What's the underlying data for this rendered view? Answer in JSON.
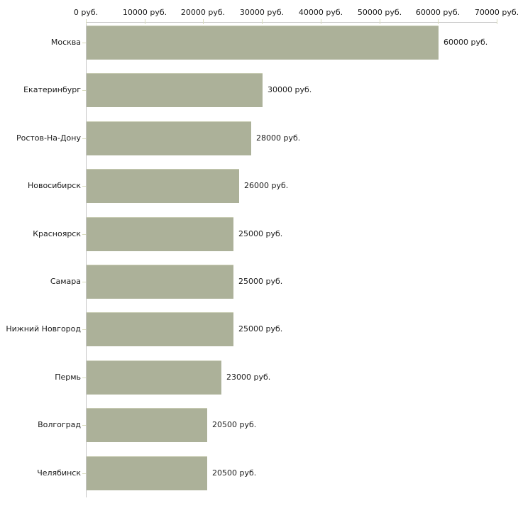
{
  "page": {
    "background_color": "#ffffff",
    "text_color": "#1a1a1a"
  },
  "chart_data": {
    "type": "bar",
    "orientation": "horizontal",
    "title": "",
    "xlabel": "",
    "ylabel": "",
    "unit": "руб.",
    "xlim": [
      0,
      70000
    ],
    "grid": "off",
    "legend": "none",
    "x_tick_values": [
      0,
      10000,
      20000,
      30000,
      40000,
      50000,
      60000,
      70000
    ],
    "x_tick_labels": [
      "0 руб.",
      "10000 руб.",
      "20000 руб.",
      "30000 руб.",
      "40000 руб.",
      "50000 руб.",
      "60000 руб.",
      "70000 руб."
    ],
    "categories": [
      "Москва",
      "Екатеринбург",
      "Ростов-На-Дону",
      "Новосибирск",
      "Красноярск",
      "Самара",
      "Нижний Новгород",
      "Пермь",
      "Волгоград",
      "Челябинск"
    ],
    "values": [
      60000,
      30000,
      28000,
      26000,
      25000,
      25000,
      25000,
      23000,
      20500,
      20500
    ],
    "value_labels": [
      "60000 руб.",
      "30000 руб.",
      "28000 руб.",
      "26000 руб.",
      "25000 руб.",
      "23000 руб.",
      "20500 руб."
    ],
    "value_labels_per_bar": [
      "60000 руб.",
      "30000 руб.",
      "28000 руб.",
      "26000 руб.",
      "25000 руб.",
      "25000 руб.",
      "25000 руб.",
      "23000 руб.",
      "20500 руб.",
      "20500 руб."
    ],
    "bar_color": "#acb199",
    "bar_top_edge_color": "#c6cab1",
    "axis_line_color": "#c6c6c6",
    "tick_mark_color": "#d9dcbe",
    "text_color": "#1a1a1a"
  }
}
